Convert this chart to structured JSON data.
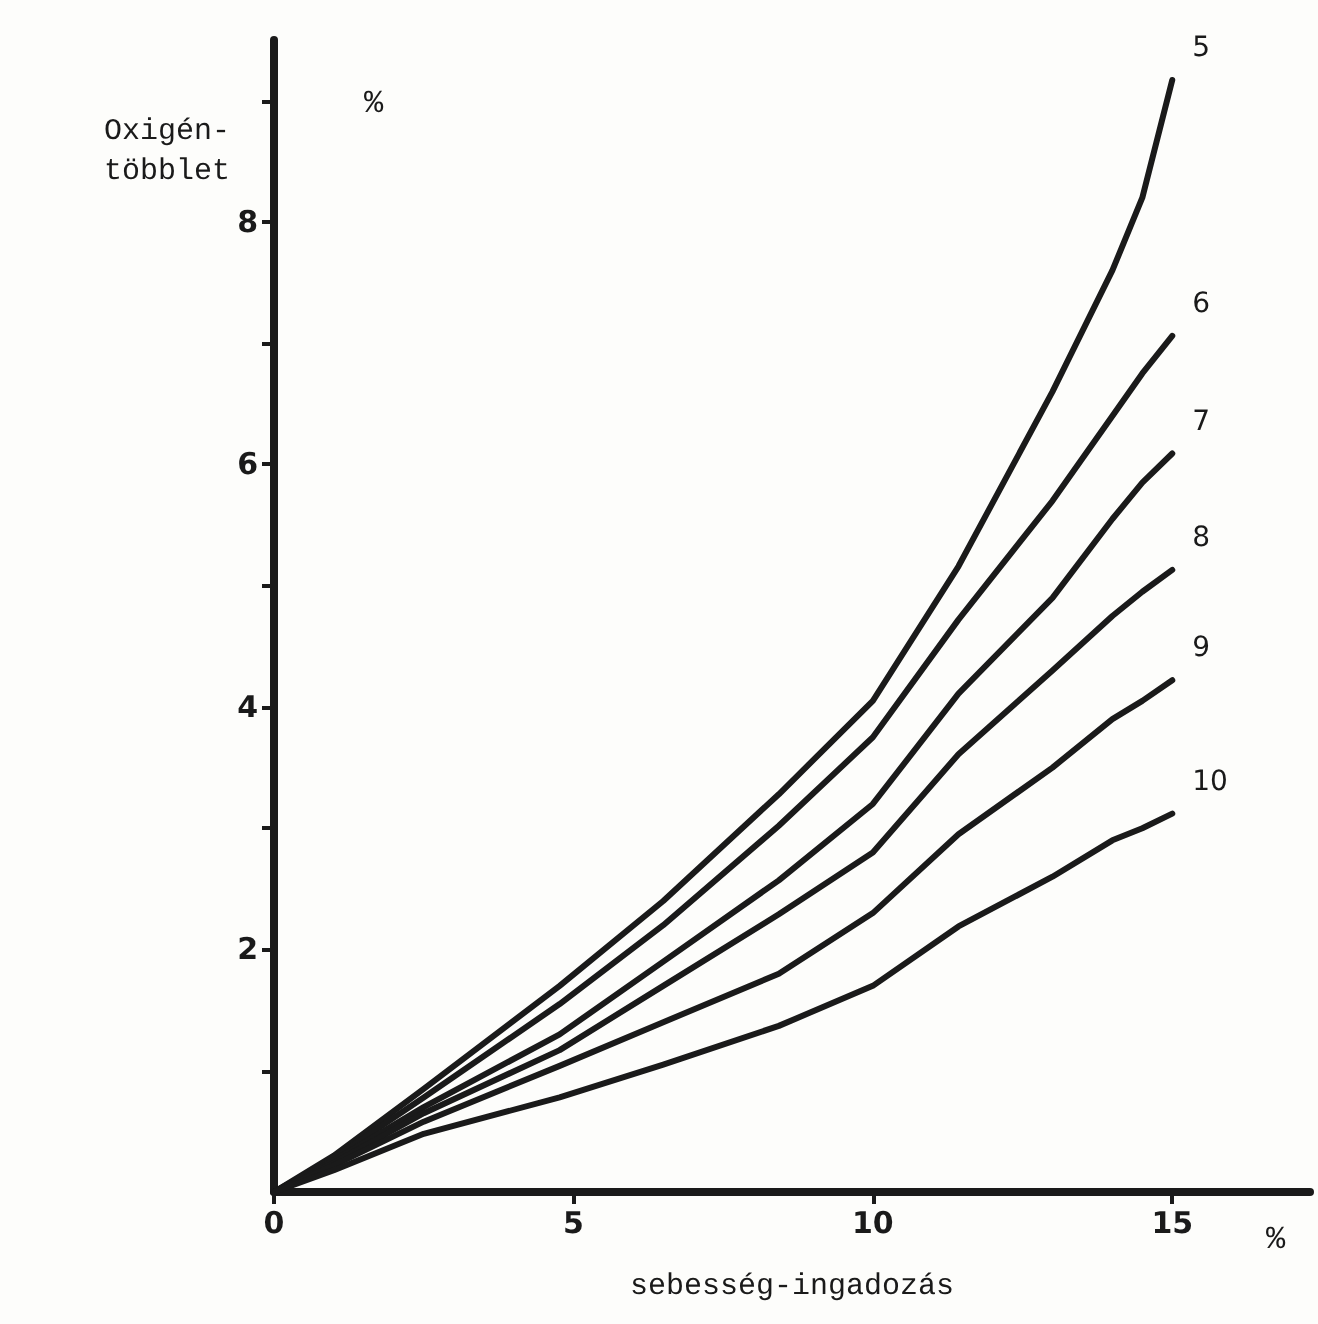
{
  "chart_data": {
    "type": "line",
    "xlabel": "sebesség-ingadozás",
    "ylabel": "Oxigén-\ntöbblet",
    "annotations": [
      "%",
      "%"
    ],
    "x": [
      0,
      1,
      2.5,
      4.77,
      6.5,
      8.43,
      10,
      11.43,
      13,
      14,
      14.5,
      15
    ],
    "series": [
      {
        "name": "5",
        "color": "#1a1a1a",
        "values": [
          0,
          0.3,
          0.85,
          1.7,
          2.4,
          3.28,
          4.05,
          5.16,
          6.6,
          7.6,
          8.2,
          9.17
        ]
      },
      {
        "name": "6",
        "color": "#1a1a1a",
        "values": [
          0,
          0.28,
          0.78,
          1.55,
          2.2,
          3.02,
          3.75,
          4.72,
          5.7,
          6.4,
          6.75,
          7.06
        ]
      },
      {
        "name": "7",
        "color": "#1a1a1a",
        "values": [
          0,
          0.26,
          0.7,
          1.3,
          1.9,
          2.57,
          3.2,
          4.11,
          4.9,
          5.55,
          5.85,
          6.09
        ]
      },
      {
        "name": "8",
        "color": "#1a1a1a",
        "values": [
          0,
          0.24,
          0.65,
          1.17,
          1.7,
          2.29,
          2.8,
          3.61,
          4.3,
          4.75,
          4.95,
          5.13
        ]
      },
      {
        "name": "9",
        "color": "#1a1a1a",
        "values": [
          0,
          0.22,
          0.58,
          1.04,
          1.4,
          1.8,
          2.3,
          2.95,
          3.5,
          3.9,
          4.05,
          4.22
        ]
      },
      {
        "name": "10",
        "color": "#1a1a1a",
        "values": [
          0,
          0.18,
          0.48,
          0.78,
          1.05,
          1.37,
          1.7,
          2.19,
          2.6,
          2.9,
          3.0,
          3.12
        ]
      }
    ],
    "xlim": [
      0,
      17.3
    ],
    "xticks": [
      0,
      5,
      10,
      15
    ],
    "ylim": [
      0,
      9.5
    ],
    "yticks": [
      {
        "value": 1,
        "label": null
      },
      2,
      {
        "value": 3,
        "label": null
      },
      4,
      {
        "value": 5,
        "label": null
      },
      6,
      {
        "value": 7,
        "label": null
      },
      8,
      {
        "value": 9,
        "label": null
      }
    ],
    "grid": false,
    "legend": false,
    "marker": "none",
    "line_style": "solid"
  }
}
